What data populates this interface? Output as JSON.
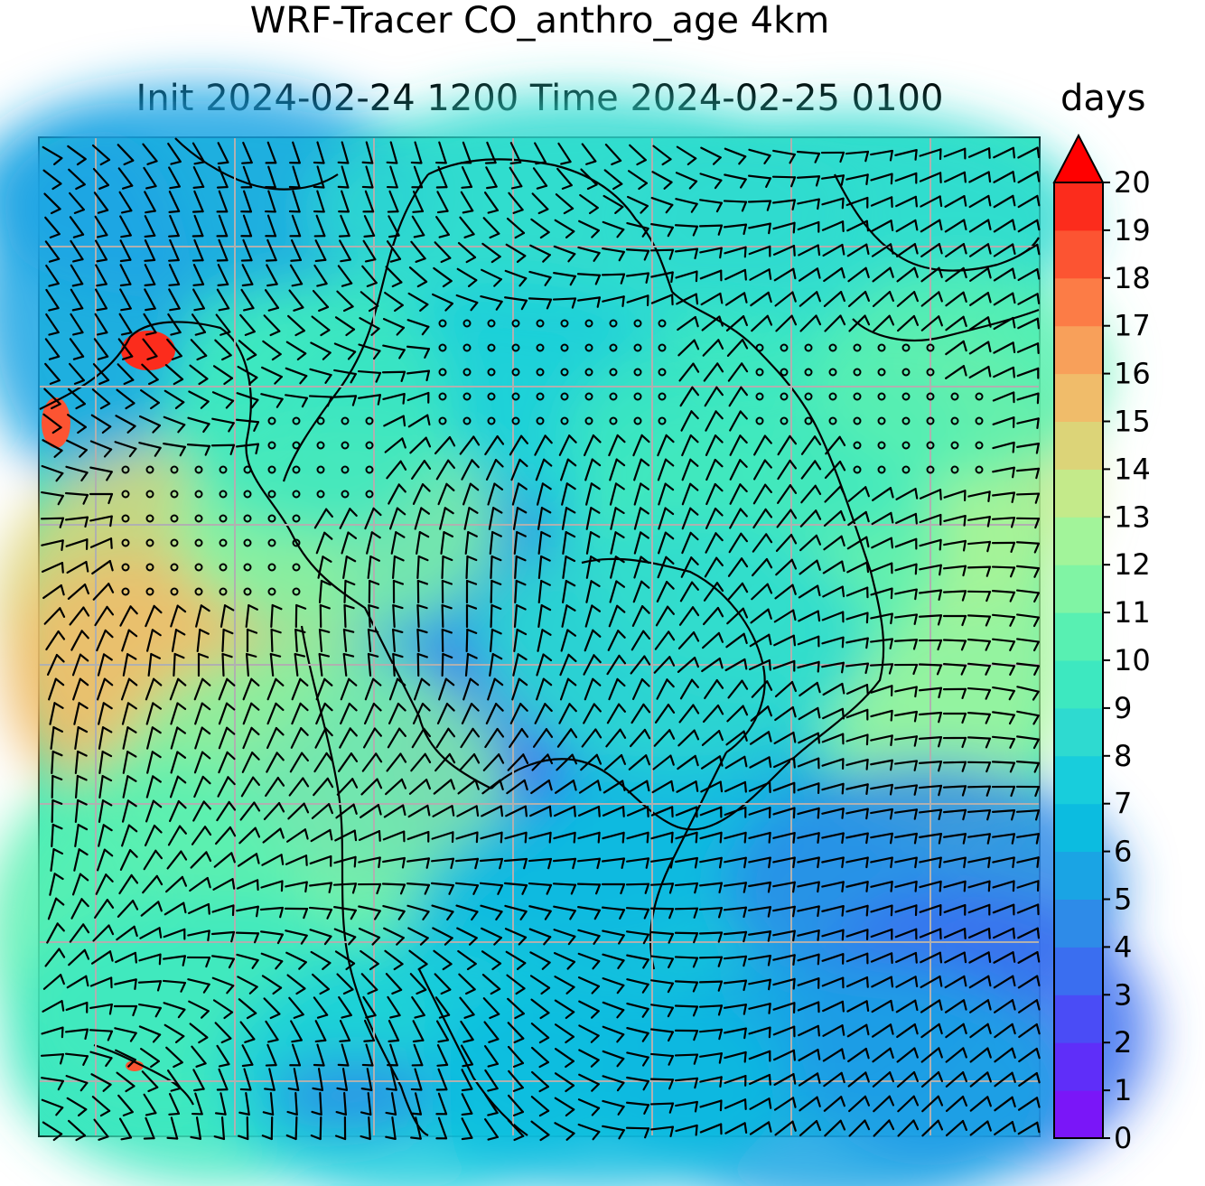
{
  "title_line1": "WRF-Tracer CO_anthro_age 4km",
  "title_line2": "Init 2024-02-24 1200 Time 2024-02-25 0100",
  "colorbar": {
    "units": "days",
    "min": 0,
    "max": 20,
    "step": 1,
    "extend": "max",
    "tick_labels": [
      "0",
      "1",
      "2",
      "3",
      "4",
      "5",
      "6",
      "7",
      "8",
      "9",
      "10",
      "11",
      "12",
      "13",
      "14",
      "15",
      "16",
      "17",
      "18",
      "19",
      "20"
    ],
    "colors": [
      "#7a16f8",
      "#5f2ef9",
      "#4a4cf6",
      "#3a6ef0",
      "#2e8be8",
      "#1aa4e4",
      "#0cbce0",
      "#18cddc",
      "#2edad0",
      "#3de8c0",
      "#58f0b2",
      "#80f4a4",
      "#a2f49a",
      "#c4ea8a",
      "#dcd478",
      "#f0bc6a",
      "#f8a05a",
      "#fc7c46",
      "#fc5432",
      "#fc2c1c",
      "#ff0000"
    ]
  },
  "map": {
    "field": "CO_anthro_age",
    "gridlines": true,
    "wind_barbs": true,
    "coastlines": true
  }
}
